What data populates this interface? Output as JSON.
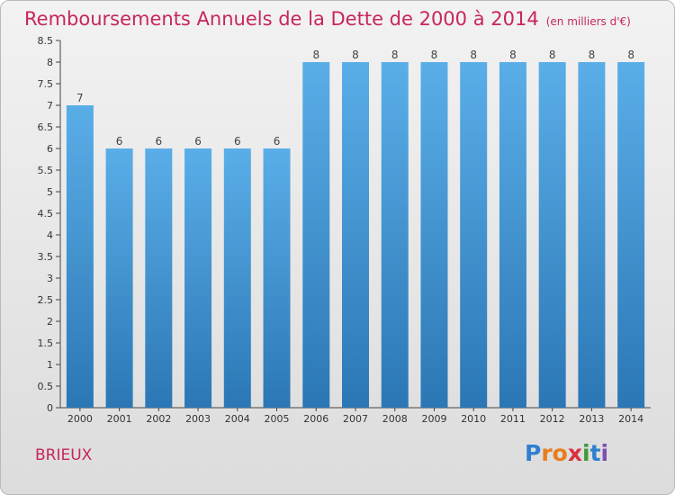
{
  "title": "Remboursements Annuels de la Dette de 2000 à 2014",
  "subtitle": "(en milliers d'€)",
  "commune": "BRIEUX",
  "brand": {
    "letters": [
      "P",
      "r",
      "o",
      "x",
      "i",
      "t",
      "i"
    ],
    "colors": [
      "#2f7fd1",
      "#e77d1f",
      "#e77d1f",
      "#d9303f",
      "#3f9a3a",
      "#2f7fd1",
      "#7c4fb0"
    ]
  },
  "colors": {
    "title": "#c7265a",
    "bar_top": "#5aaee8",
    "bar_bottom": "#2b77b5"
  },
  "chart_data": {
    "type": "bar",
    "categories": [
      "2000",
      "2001",
      "2002",
      "2003",
      "2004",
      "2005",
      "2006",
      "2007",
      "2008",
      "2009",
      "2010",
      "2011",
      "2012",
      "2013",
      "2014"
    ],
    "values": [
      7,
      6,
      6,
      6,
      6,
      6,
      8,
      8,
      8,
      8,
      8,
      8,
      8,
      8,
      8
    ],
    "data_labels": [
      "7",
      "6",
      "6",
      "6",
      "6",
      "6",
      "8",
      "8",
      "8",
      "8",
      "8",
      "8",
      "8",
      "8",
      "8"
    ],
    "y_ticks": [
      "0",
      "0.5",
      "1",
      "1.5",
      "2",
      "2.5",
      "3",
      "3.5",
      "4",
      "4.5",
      "5",
      "5.5",
      "6",
      "6.5",
      "7",
      "7.5",
      "8",
      "8.5"
    ],
    "ylim": [
      0,
      8.5
    ],
    "grid": false
  }
}
